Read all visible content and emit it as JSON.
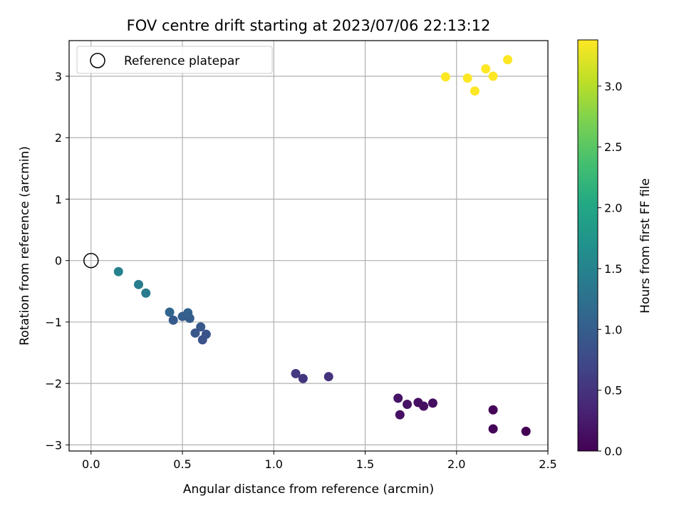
{
  "chart_data": {
    "type": "scatter",
    "title": "FOV centre drift starting at 2023/07/06 22:13:12",
    "xlabel": "Angular distance from reference (arcmin)",
    "ylabel": "Rotation from reference (arcmin)",
    "xlim": [
      -0.12,
      2.5
    ],
    "ylim": [
      -3.1,
      3.58
    ],
    "x_ticks": [
      0.0,
      0.5,
      1.0,
      1.5,
      2.0,
      2.5
    ],
    "x_tick_labels": [
      "0.0",
      "0.5",
      "1.0",
      "1.5",
      "2.0",
      "2.5"
    ],
    "y_ticks": [
      -3,
      -2,
      -1,
      0,
      1,
      2,
      3
    ],
    "y_tick_labels": [
      "−3",
      "−2",
      "−1",
      "0",
      "1",
      "2",
      "3"
    ],
    "grid": true,
    "legend": {
      "placement": "upper-left",
      "entries": [
        {
          "label": "Reference platepar",
          "marker": "open-circle"
        }
      ]
    },
    "reference": {
      "x": 0.0,
      "y": 0.0
    },
    "colorbar": {
      "label": "Hours from first FF file",
      "colormap": "viridis",
      "range": [
        0.0,
        3.38
      ],
      "ticks": [
        0.0,
        0.5,
        1.0,
        1.5,
        2.0,
        2.5,
        3.0
      ],
      "tick_labels": [
        "0.0",
        "0.5",
        "1.0",
        "1.5",
        "2.0",
        "2.5",
        "3.0"
      ]
    },
    "points": [
      {
        "x": 2.38,
        "y": -2.78,
        "c": 0.0
      },
      {
        "x": 2.2,
        "y": -2.74,
        "c": 0.03
      },
      {
        "x": 2.2,
        "y": -2.43,
        "c": 0.05
      },
      {
        "x": 1.69,
        "y": -2.51,
        "c": 0.15
      },
      {
        "x": 1.68,
        "y": -2.24,
        "c": 0.18
      },
      {
        "x": 1.73,
        "y": -2.34,
        "c": 0.16
      },
      {
        "x": 1.79,
        "y": -2.31,
        "c": 0.14
      },
      {
        "x": 1.82,
        "y": -2.37,
        "c": 0.13
      },
      {
        "x": 1.87,
        "y": -2.32,
        "c": 0.12
      },
      {
        "x": 1.3,
        "y": -1.89,
        "c": 0.5
      },
      {
        "x": 1.12,
        "y": -1.84,
        "c": 0.55
      },
      {
        "x": 1.16,
        "y": -1.92,
        "c": 0.52
      },
      {
        "x": 0.61,
        "y": -1.29,
        "c": 0.85
      },
      {
        "x": 0.63,
        "y": -1.2,
        "c": 0.88
      },
      {
        "x": 0.6,
        "y": -1.08,
        "c": 0.92
      },
      {
        "x": 0.57,
        "y": -1.18,
        "c": 0.9
      },
      {
        "x": 0.45,
        "y": -0.97,
        "c": 0.95
      },
      {
        "x": 0.5,
        "y": -0.91,
        "c": 1.0
      },
      {
        "x": 0.52,
        "y": -0.9,
        "c": 1.02
      },
      {
        "x": 0.54,
        "y": -0.94,
        "c": 0.98
      },
      {
        "x": 0.53,
        "y": -0.85,
        "c": 1.05
      },
      {
        "x": 0.43,
        "y": -0.84,
        "c": 1.1
      },
      {
        "x": 0.3,
        "y": -0.53,
        "c": 1.38
      },
      {
        "x": 0.26,
        "y": -0.39,
        "c": 1.42
      },
      {
        "x": 0.15,
        "y": -0.18,
        "c": 1.5
      },
      {
        "x": 1.94,
        "y": 2.99,
        "c": 3.38
      },
      {
        "x": 2.06,
        "y": 2.97,
        "c": 3.38
      },
      {
        "x": 2.1,
        "y": 2.76,
        "c": 3.38
      },
      {
        "x": 2.16,
        "y": 3.12,
        "c": 3.38
      },
      {
        "x": 2.2,
        "y": 3.0,
        "c": 3.38
      },
      {
        "x": 2.28,
        "y": 3.27,
        "c": 3.38
      }
    ]
  }
}
